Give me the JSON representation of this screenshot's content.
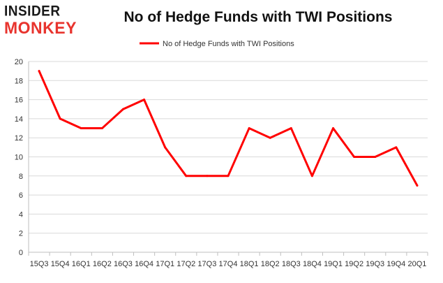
{
  "logo": {
    "line1": "INSIDER",
    "line2": "MONKEY"
  },
  "colors": {
    "series": "#ff0000",
    "grid": "#d9d9d9",
    "axis": "#bfbfbf",
    "logo_dark": "#1a1a1a",
    "logo_red": "#e8342e"
  },
  "chart_data": {
    "type": "line",
    "title": "No of Hedge Funds with TWI Positions",
    "xlabel": "",
    "ylabel": "",
    "categories": [
      "15Q3",
      "15Q4",
      "16Q1",
      "16Q2",
      "16Q3",
      "16Q4",
      "17Q1",
      "17Q2",
      "17Q3",
      "17Q4",
      "18Q1",
      "18Q2",
      "18Q3",
      "18Q4",
      "19Q1",
      "19Q2",
      "19Q3",
      "19Q4",
      "20Q1"
    ],
    "series": [
      {
        "name": "No of Hedge Funds with TWI Positions",
        "values": [
          19,
          14,
          13,
          13,
          15,
          16,
          11,
          8,
          8,
          8,
          13,
          12,
          13,
          8,
          13,
          10,
          10,
          11,
          7
        ]
      }
    ],
    "ylim": [
      0,
      20
    ],
    "yticks": [
      0,
      2,
      4,
      6,
      8,
      10,
      12,
      14,
      16,
      18,
      20
    ],
    "grid": true,
    "legend_position": "top-center"
  }
}
